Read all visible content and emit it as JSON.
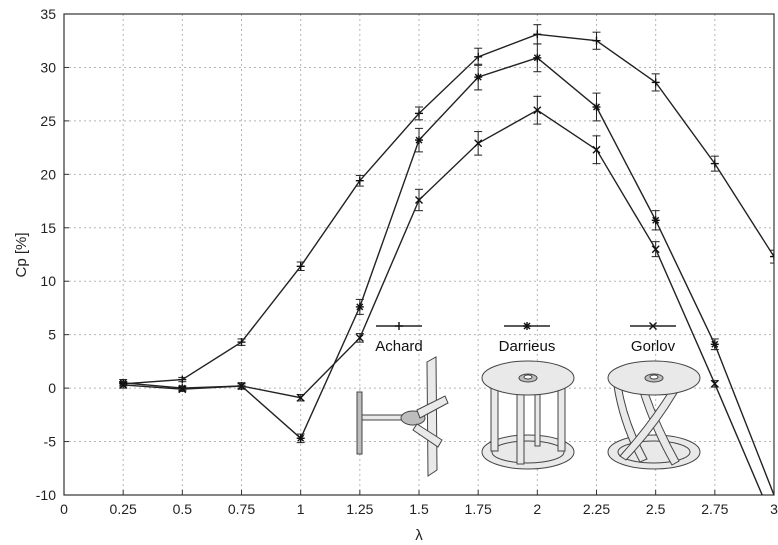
{
  "chart_data": {
    "type": "line",
    "title": "",
    "xlabel": "λ",
    "ylabel": "Cp [%]",
    "xlim": [
      0,
      3
    ],
    "ylim": [
      -10,
      35
    ],
    "grid": true,
    "legend_position": "bottom-right",
    "x_ticks": [
      "0",
      "0.25",
      "0.5",
      "0.75",
      "1",
      "1.25",
      "1.5",
      "1.75",
      "2",
      "2.25",
      "2.5",
      "2.75",
      "3"
    ],
    "y_ticks": [
      "-10",
      "-5",
      "0",
      "5",
      "10",
      "15",
      "20",
      "25",
      "30",
      "35"
    ],
    "series": [
      {
        "name": "Achard",
        "marker": "plus",
        "x": [
          0.25,
          0.5,
          0.75,
          1.0,
          1.25,
          1.5,
          1.75,
          2.0,
          2.25,
          2.5,
          2.75,
          3.0
        ],
        "y": [
          0.4,
          0.8,
          4.3,
          11.4,
          19.4,
          25.7,
          31.0,
          33.1,
          32.5,
          28.6,
          21.0,
          12.3
        ],
        "err": [
          0.2,
          0.2,
          0.3,
          0.4,
          0.5,
          0.6,
          0.8,
          0.9,
          0.8,
          0.8,
          0.7,
          0.6
        ]
      },
      {
        "name": "Darrieus",
        "marker": "star",
        "x": [
          0.25,
          0.5,
          0.75,
          1.0,
          1.25,
          1.5,
          1.75,
          2.0,
          2.25,
          2.5,
          2.75,
          3.0
        ],
        "y": [
          0.5,
          0.0,
          0.2,
          -4.7,
          7.6,
          23.2,
          29.1,
          30.9,
          26.3,
          15.7,
          4.1,
          -10.0
        ],
        "err": [
          0.3,
          0.2,
          0.3,
          0.4,
          0.7,
          1.1,
          1.2,
          1.3,
          1.3,
          0.9,
          0.5,
          0.0
        ]
      },
      {
        "name": "Gorlov",
        "marker": "x",
        "x": [
          0.25,
          0.5,
          0.75,
          1.0,
          1.25,
          1.5,
          1.75,
          2.0,
          2.25,
          2.5,
          2.75,
          2.95
        ],
        "y": [
          0.3,
          -0.1,
          0.2,
          -0.9,
          4.7,
          17.6,
          22.9,
          26.0,
          22.3,
          13.0,
          0.4,
          -10.0
        ],
        "err": [
          0.3,
          0.2,
          0.2,
          0.3,
          0.4,
          1.0,
          1.1,
          1.3,
          1.3,
          0.7,
          0.3,
          0.0
        ]
      }
    ]
  }
}
